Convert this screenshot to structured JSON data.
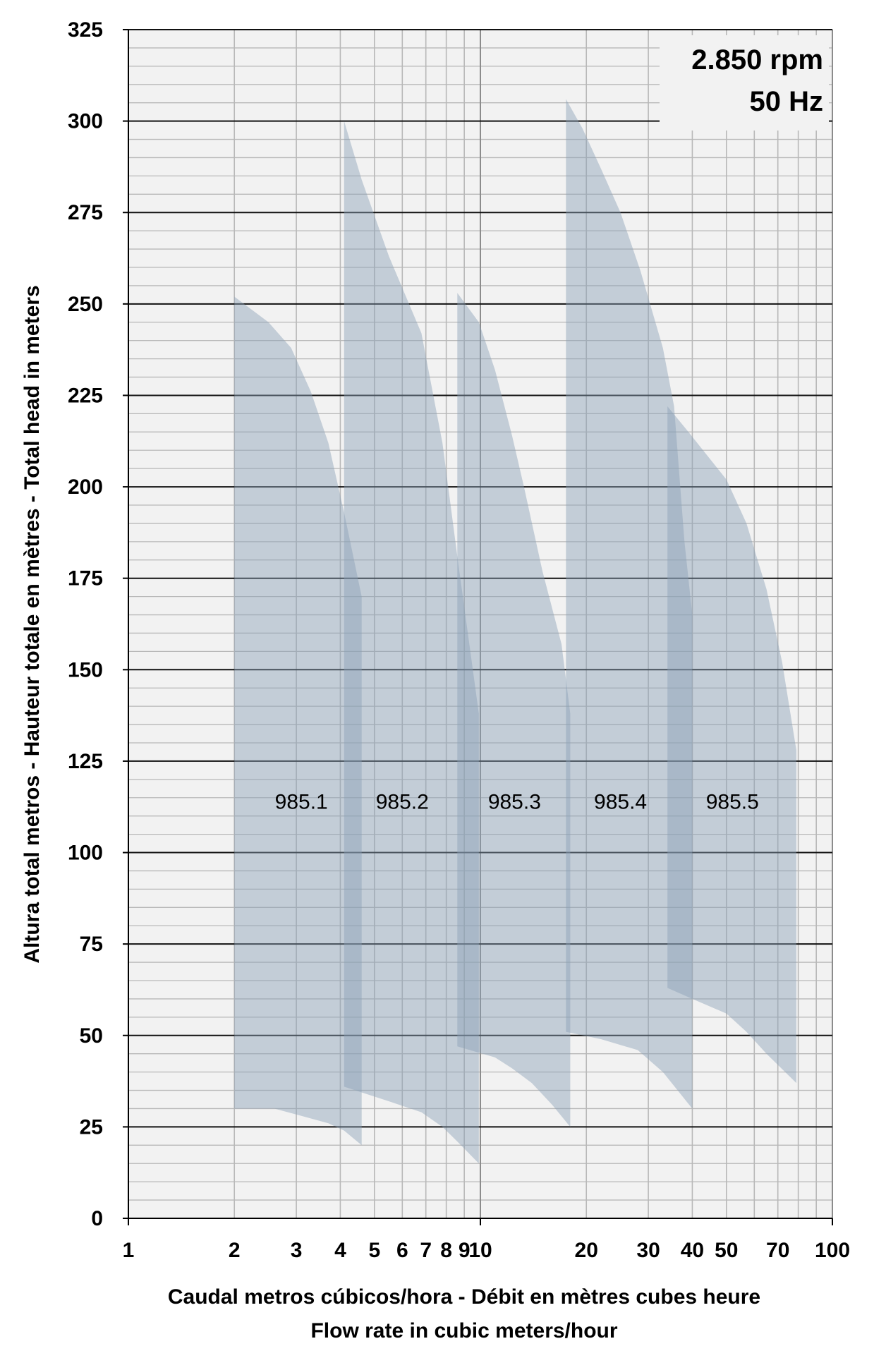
{
  "chart_data": {
    "type": "area",
    "x_scale": "log",
    "y_scale": "linear",
    "xlim": [
      1,
      100
    ],
    "ylim": [
      0,
      325
    ],
    "y_ticks": [
      "0",
      "25",
      "50",
      "75",
      "100",
      "125",
      "150",
      "175",
      "200",
      "225",
      "250",
      "275",
      "300",
      "325"
    ],
    "x_ticks": [
      {
        "value": 1,
        "label": "1"
      },
      {
        "value": 2,
        "label": "2"
      },
      {
        "value": 3,
        "label": "3"
      },
      {
        "value": 4,
        "label": "4"
      },
      {
        "value": 5,
        "label": "5"
      },
      {
        "value": 6,
        "label": "6"
      },
      {
        "value": 7,
        "label": "7"
      },
      {
        "value": 8,
        "label": "8"
      },
      {
        "value": 9,
        "label": "9"
      },
      {
        "value": 10,
        "label": "10"
      },
      {
        "value": 20,
        "label": "20"
      },
      {
        "value": 30,
        "label": "30"
      },
      {
        "value": 40,
        "label": "40"
      },
      {
        "value": 50,
        "label": "50"
      },
      {
        "value": 70,
        "label": "70"
      },
      {
        "value": 100,
        "label": "100"
      }
    ],
    "grid": true,
    "ylabel": "Altura total metros - Hauteur totale en mètres - Total head in meters",
    "xlabel_line1": "Caudal metros cúbicos/hora - Débit en mètres cubes heure",
    "xlabel_line2": "Flow rate in cubic meters/hour",
    "note_line1": "2.850 rpm",
    "note_line2": "50 Hz",
    "colors": {
      "fill": "#8a9fb6",
      "overlap": "#6f88a5",
      "plot_bg": "#f2f2f2"
    },
    "series": [
      {
        "name": "985.1",
        "label_at": [
          3.1,
          112
        ],
        "upper": [
          [
            2.0,
            252
          ],
          [
            2.5,
            245
          ],
          [
            2.9,
            238
          ],
          [
            3.3,
            226
          ],
          [
            3.7,
            212
          ],
          [
            4.1,
            193
          ],
          [
            4.6,
            170
          ]
        ],
        "lower": [
          [
            2.0,
            30
          ],
          [
            2.6,
            30
          ],
          [
            3.1,
            28
          ],
          [
            3.7,
            26
          ],
          [
            4.1,
            24
          ],
          [
            4.6,
            20
          ]
        ]
      },
      {
        "name": "985.2",
        "label_at": [
          6.0,
          112
        ],
        "upper": [
          [
            4.1,
            300
          ],
          [
            4.6,
            284
          ],
          [
            5.5,
            263
          ],
          [
            6.8,
            242
          ],
          [
            7.8,
            212
          ],
          [
            8.6,
            181
          ],
          [
            9.9,
            138
          ]
        ],
        "lower": [
          [
            4.1,
            36
          ],
          [
            5.5,
            32
          ],
          [
            6.8,
            29
          ],
          [
            7.8,
            25
          ],
          [
            8.6,
            21
          ],
          [
            9.9,
            15
          ]
        ]
      },
      {
        "name": "985.3",
        "label_at": [
          12.5,
          112
        ],
        "upper": [
          [
            8.6,
            253
          ],
          [
            9.9,
            245
          ],
          [
            11.0,
            232
          ],
          [
            12.3,
            214
          ],
          [
            13.3,
            200
          ],
          [
            15.0,
            177
          ],
          [
            17.0,
            157
          ],
          [
            18.0,
            138
          ]
        ],
        "lower": [
          [
            8.6,
            47
          ],
          [
            11.0,
            44
          ],
          [
            12.3,
            41
          ],
          [
            14.0,
            37
          ],
          [
            16.0,
            31
          ],
          [
            18.0,
            25
          ]
        ]
      },
      {
        "name": "985.4",
        "label_at": [
          25.0,
          112
        ],
        "upper": [
          [
            17.5,
            306
          ],
          [
            19.5,
            298
          ],
          [
            22.0,
            287
          ],
          [
            25.0,
            275
          ],
          [
            28.5,
            259
          ],
          [
            33.0,
            238
          ],
          [
            35.5,
            222
          ],
          [
            38.0,
            185
          ],
          [
            40.0,
            165
          ]
        ],
        "lower": [
          [
            17.5,
            51
          ],
          [
            22.0,
            49
          ],
          [
            28.0,
            46
          ],
          [
            33.0,
            40
          ],
          [
            40.0,
            30
          ]
        ]
      },
      {
        "name": "985.5",
        "label_at": [
          52.0,
          112
        ],
        "upper": [
          [
            34.0,
            222
          ],
          [
            39.0,
            215
          ],
          [
            50.0,
            202
          ],
          [
            57.0,
            190
          ],
          [
            65.0,
            172
          ],
          [
            72.0,
            152
          ],
          [
            79.0,
            128
          ]
        ],
        "lower": [
          [
            34.0,
            63
          ],
          [
            40.0,
            60
          ],
          [
            50.0,
            56
          ],
          [
            57.0,
            51
          ],
          [
            65.0,
            45
          ],
          [
            79.0,
            37
          ]
        ]
      }
    ]
  }
}
